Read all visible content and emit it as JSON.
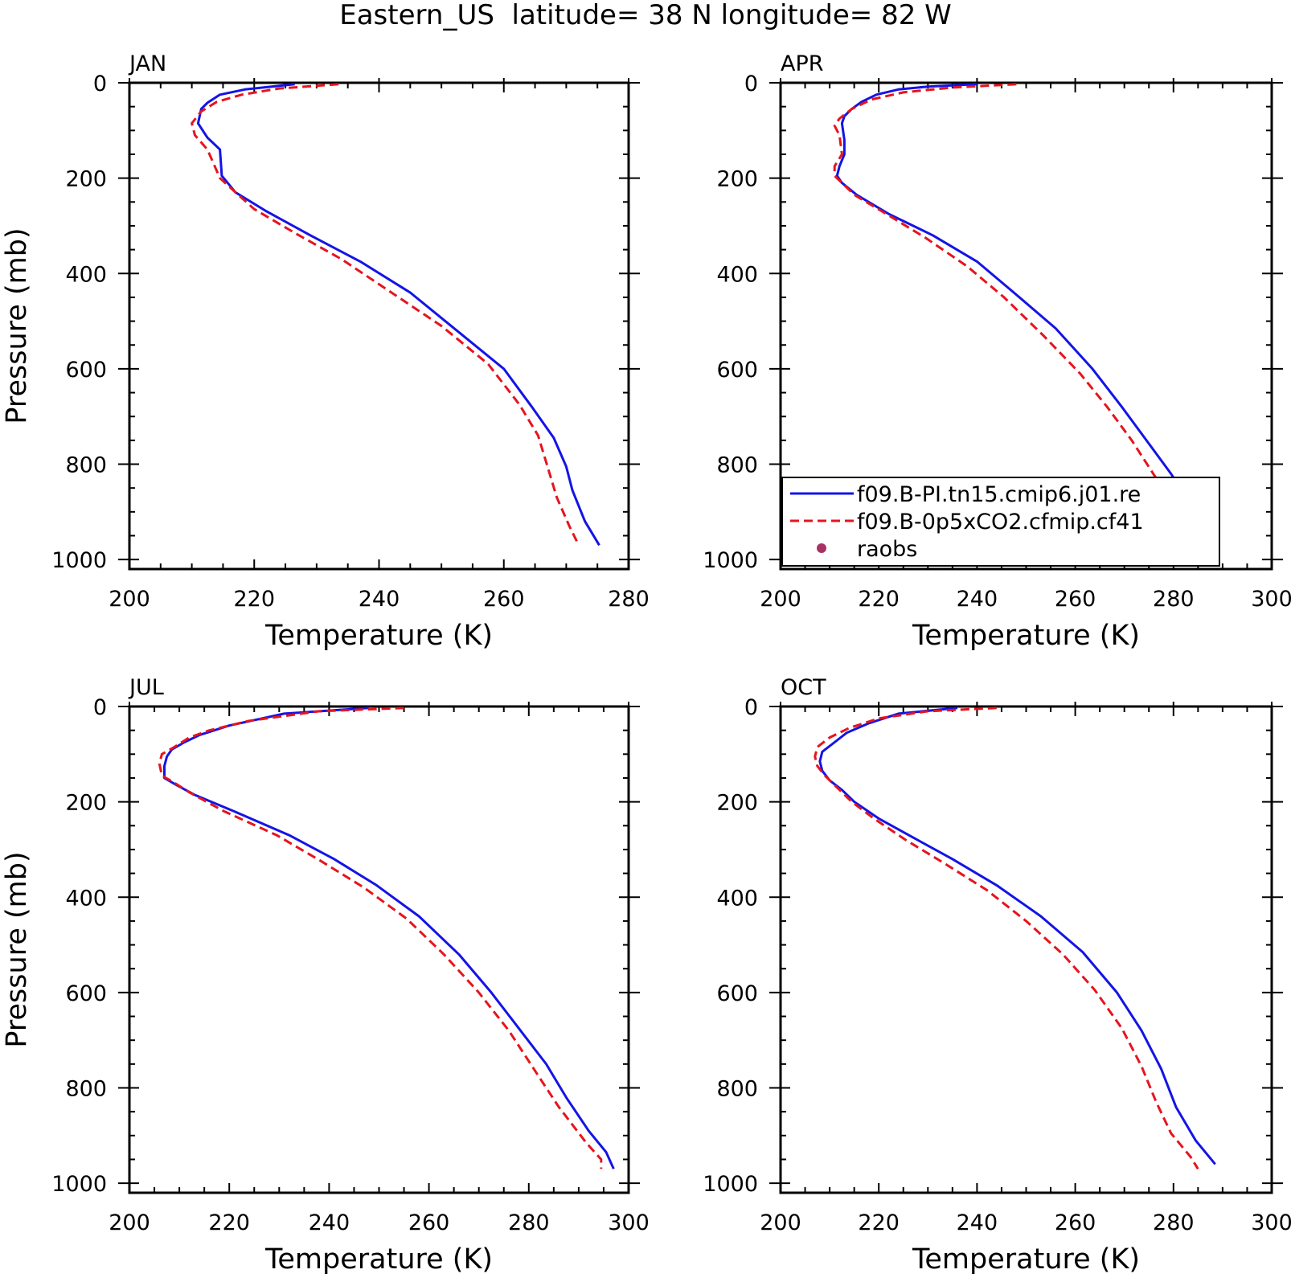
{
  "figure": {
    "title": "Eastern_US  latitude= 38 N longitude= 82 W"
  },
  "colors": {
    "model": "#1414e6",
    "co2_run": "#e6141e",
    "raobs": "#a83263",
    "axis": "#000000"
  },
  "legend": {
    "panel": "APR",
    "entries": [
      {
        "label": "f09.B-PI.tn15.cmip6.j01.re",
        "style": "solid",
        "color": "#1414e6"
      },
      {
        "label": "f09.B-0p5xCO2.cfmip.cf41",
        "style": "dashed",
        "color": "#e6141e"
      },
      {
        "label": "raobs",
        "style": "marker",
        "color": "#a83263"
      }
    ]
  },
  "chart_data": [
    {
      "type": "line",
      "title": "JAN",
      "xlabel": "Temperature (K)",
      "ylabel": "Pressure (mb)",
      "xlim": [
        200,
        280
      ],
      "ylim": [
        1020,
        0
      ],
      "xticks": [
        200,
        220,
        240,
        260,
        280
      ],
      "yticks": [
        0,
        200,
        400,
        600,
        800,
        1000
      ],
      "grid": false,
      "series": [
        {
          "name": "f09.B-PI.tn15.cmip6.j01.re",
          "style": "solid",
          "color": "#1414e6",
          "x": [
            226.5,
            218.5,
            214.5,
            212.5,
            211.5,
            211.0,
            212.5,
            214.5,
            214.8,
            217.0,
            222.0,
            229.0,
            237.0,
            245.0,
            252.5,
            260.0,
            264.5,
            268.0,
            270.0,
            271.0,
            273.0,
            275.3
          ],
          "y": [
            3,
            14,
            25,
            42,
            55,
            85,
            115,
            140,
            195,
            230,
            270,
            320,
            375,
            440,
            520,
            600,
            680,
            745,
            805,
            855,
            920,
            970
          ]
        },
        {
          "name": "f09.B-0p5xCO2.cfmip.cf41",
          "style": "dashed",
          "color": "#e6141e",
          "x": [
            233.5,
            224.0,
            218.0,
            214.0,
            211.5,
            210.0,
            210.5,
            212.5,
            213.5,
            214.5,
            217.0,
            220.0,
            226.5,
            234.0,
            242.0,
            250.0,
            257.5,
            262.5,
            265.5,
            267.0,
            268.5,
            270.5,
            272.0
          ],
          "y": [
            3,
            12,
            25,
            40,
            60,
            85,
            110,
            140,
            170,
            200,
            230,
            265,
            315,
            370,
            440,
            510,
            590,
            675,
            740,
            805,
            870,
            930,
            970
          ]
        }
      ]
    },
    {
      "type": "line",
      "title": "APR",
      "xlabel": "Temperature (K)",
      "ylabel": "",
      "xlim": [
        200,
        300
      ],
      "ylim": [
        1020,
        0
      ],
      "xticks": [
        200,
        220,
        240,
        260,
        280,
        300
      ],
      "yticks": [
        0,
        200,
        400,
        600,
        800,
        1000
      ],
      "grid": false,
      "series": [
        {
          "name": "f09.B-PI.tn15.cmip6.j01.re",
          "style": "solid",
          "color": "#1414e6",
          "x": [
            240.0,
            230.0,
            224.0,
            219.5,
            216.5,
            214.5,
            213.0,
            212.5,
            213.0,
            213.0,
            212.0,
            211.5,
            212.5,
            215.5,
            222.0,
            231.0,
            240.0,
            247.5,
            256.0,
            263.5,
            269.5,
            274.5,
            279.5,
            284.0,
            287.0
          ],
          "y": [
            3,
            8,
            14,
            25,
            40,
            55,
            70,
            85,
            120,
            150,
            175,
            195,
            210,
            235,
            275,
            320,
            375,
            440,
            515,
            600,
            680,
            750,
            820,
            890,
            970
          ]
        },
        {
          "name": "f09.B-0p5xCO2.cfmip.cf41",
          "style": "dashed",
          "color": "#e6141e",
          "x": [
            248.0,
            235.0,
            225.0,
            218.5,
            214.5,
            212.0,
            211.0,
            212.0,
            212.5,
            211.0,
            211.0,
            212.5,
            215.0,
            221.5,
            229.5,
            238.0,
            245.5,
            253.5,
            261.0,
            266.5,
            271.5,
            276.5,
            281.0,
            284.0
          ],
          "y": [
            3,
            10,
            20,
            35,
            55,
            75,
            90,
            110,
            150,
            175,
            195,
            210,
            235,
            275,
            325,
            385,
            450,
            530,
            610,
            680,
            750,
            830,
            905,
            970
          ]
        }
      ]
    },
    {
      "type": "line",
      "title": "JUL",
      "xlabel": "Temperature (K)",
      "ylabel": "Pressure (mb)",
      "xlim": [
        200,
        300
      ],
      "ylim": [
        1020,
        0
      ],
      "xticks": [
        200,
        220,
        240,
        260,
        280,
        300
      ],
      "yticks": [
        0,
        200,
        400,
        600,
        800,
        1000
      ],
      "grid": false,
      "series": [
        {
          "name": "f09.B-PI.tn15.cmip6.j01.re",
          "style": "solid",
          "color": "#1414e6",
          "x": [
            248.0,
            231.0,
            220.0,
            214.0,
            211.0,
            208.5,
            207.5,
            207.0,
            207.0,
            209.5,
            213.0,
            221.0,
            232.0,
            241.0,
            249.5,
            258.0,
            266.0,
            272.5,
            278.0,
            283.5,
            287.5,
            292.0,
            295.5,
            297.0
          ],
          "y": [
            3,
            15,
            40,
            60,
            75,
            90,
            105,
            125,
            150,
            165,
            185,
            220,
            270,
            320,
            375,
            440,
            520,
            600,
            675,
            750,
            820,
            890,
            935,
            970
          ]
        },
        {
          "name": "f09.B-0p5xCO2.cfmip.cf41",
          "style": "dashed",
          "color": "#e6141e",
          "x": [
            255.0,
            238.0,
            224.0,
            216.0,
            212.0,
            209.0,
            206.5,
            206.0,
            206.5,
            209.0,
            212.0,
            219.0,
            229.5,
            238.5,
            247.0,
            255.5,
            263.0,
            270.0,
            276.0,
            281.0,
            286.0,
            291.5,
            294.5,
            294.5
          ],
          "y": [
            3,
            10,
            30,
            50,
            65,
            85,
            100,
            120,
            145,
            160,
            180,
            220,
            270,
            325,
            380,
            445,
            520,
            600,
            680,
            760,
            840,
            915,
            950,
            970
          ]
        }
      ]
    },
    {
      "type": "line",
      "title": "OCT",
      "xlabel": "Temperature (K)",
      "ylabel": "",
      "xlim": [
        200,
        300
      ],
      "ylim": [
        1020,
        0
      ],
      "xticks": [
        200,
        220,
        240,
        260,
        280,
        300
      ],
      "yticks": [
        0,
        200,
        400,
        600,
        800,
        1000
      ],
      "grid": false,
      "series": [
        {
          "name": "f09.B-PI.tn15.cmip6.j01.re",
          "style": "solid",
          "color": "#1414e6",
          "x": [
            236.0,
            224.0,
            218.0,
            213.5,
            211.0,
            208.5,
            208.0,
            208.5,
            210.0,
            212.5,
            215.0,
            220.0,
            227.0,
            235.0,
            244.0,
            253.0,
            261.5,
            268.5,
            273.5,
            277.5,
            280.5,
            284.5,
            288.5
          ],
          "y": [
            3,
            15,
            35,
            55,
            75,
            95,
            115,
            135,
            155,
            175,
            200,
            235,
            275,
            320,
            375,
            440,
            515,
            600,
            680,
            760,
            840,
            910,
            960
          ]
        },
        {
          "name": "f09.B-0p5xCO2.cfmip.cf41",
          "style": "dashed",
          "color": "#e6141e",
          "x": [
            244.0,
            230.0,
            220.0,
            214.0,
            210.0,
            207.5,
            207.0,
            207.5,
            209.0,
            211.5,
            214.5,
            219.0,
            225.5,
            233.5,
            242.0,
            250.0,
            257.5,
            264.0,
            269.5,
            273.5,
            276.5,
            279.5,
            283.5,
            285.0
          ],
          "y": [
            3,
            10,
            25,
            45,
            65,
            85,
            105,
            125,
            145,
            170,
            200,
            235,
            280,
            330,
            385,
            450,
            520,
            595,
            675,
            755,
            830,
            895,
            945,
            970
          ]
        }
      ]
    }
  ]
}
